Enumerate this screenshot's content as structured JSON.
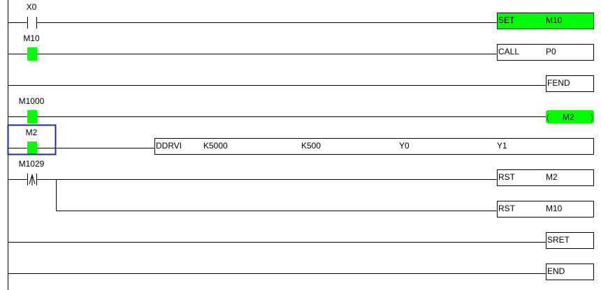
{
  "colors": {
    "active": "#00ff00",
    "selection": "#1c2b9c",
    "wire": "#000000"
  },
  "rungs": [
    {
      "contact": {
        "label": "X0",
        "type": "normally-open",
        "active": false
      },
      "instruction": {
        "op": "SET",
        "operands": [
          "M10"
        ],
        "active": true
      }
    },
    {
      "contact": {
        "label": "M10",
        "type": "normally-open",
        "active": true
      },
      "instruction": {
        "op": "CALL",
        "operands": [
          "P0"
        ],
        "active": false
      }
    },
    {
      "instruction": {
        "op": "FEND",
        "operands": []
      }
    },
    {
      "contact": {
        "label": "M1000",
        "type": "normally-open",
        "active": true
      },
      "coil": {
        "open": "(",
        "label": "M2",
        "close": ")",
        "active": true
      }
    },
    {
      "contact": {
        "label": "M2",
        "type": "normally-open",
        "active": true,
        "selected": true
      },
      "instruction": {
        "op": "DDRVI",
        "operands": [
          "K5000",
          "K500",
          "Y0",
          "Y1"
        ]
      }
    },
    {
      "contact": {
        "label": "M1029",
        "type": "rising-edge",
        "active": false
      },
      "instruction": {
        "op": "RST",
        "operands": [
          "M2"
        ]
      },
      "branch_instruction": {
        "op": "RST",
        "operands": [
          "M10"
        ]
      }
    },
    {
      "instruction": {
        "op": "SRET",
        "operands": []
      }
    },
    {
      "instruction": {
        "op": "END",
        "operands": []
      }
    }
  ]
}
